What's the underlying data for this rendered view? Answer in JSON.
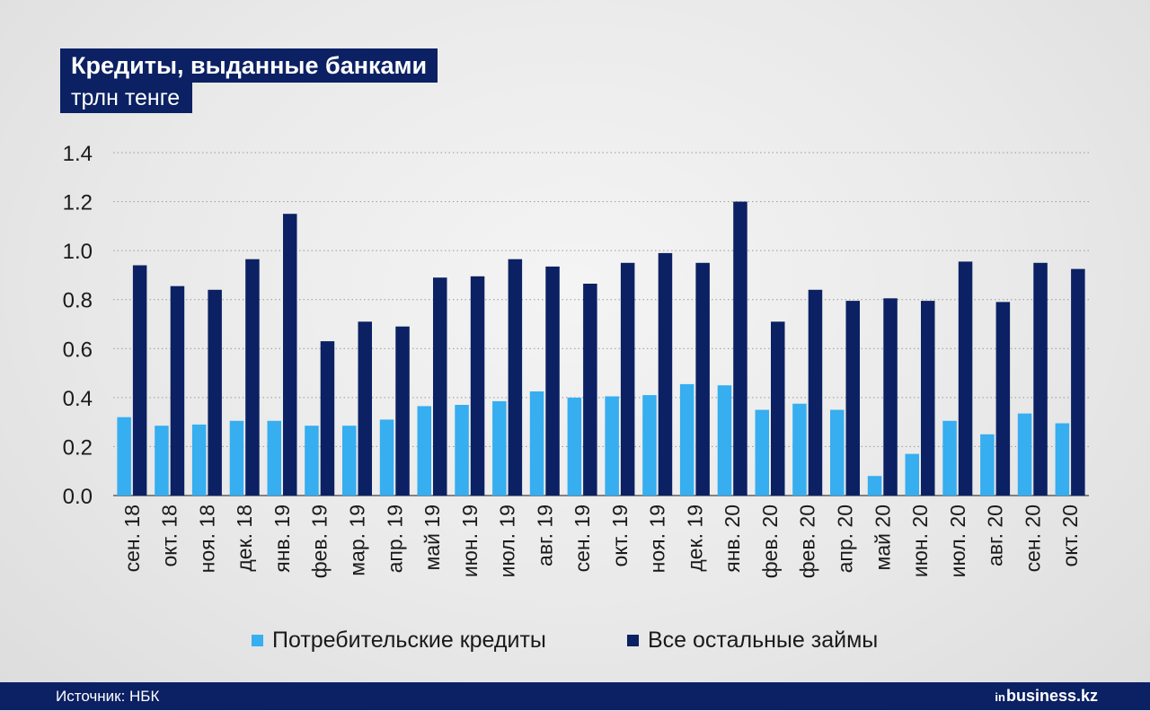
{
  "header": {
    "title": "Кредиты, выданные банками",
    "subtitle": "трлн тенге"
  },
  "footer": {
    "source": "Источник: НБК",
    "brand_prefix": "in",
    "brand_name": "business.kz"
  },
  "colors": {
    "consumer": "#36aef0",
    "other": "#0b2163",
    "grid": "#9a9a9a",
    "axis": "#444444"
  },
  "chart_data": {
    "type": "bar",
    "title": "Кредиты, выданные банками",
    "ylabel": "трлн тенге",
    "ylim": [
      0,
      1.4
    ],
    "yticks": [
      "0.0",
      "0.2",
      "0.4",
      "0.6",
      "0.8",
      "1.0",
      "1.2",
      "1.4"
    ],
    "grid": true,
    "legend_position": "bottom",
    "categories": [
      "сен. 18",
      "окт. 18",
      "ноя. 18",
      "дек. 18",
      "янв. 19",
      "фев. 19",
      "мар. 19",
      "апр. 19",
      "май 19",
      "июн. 19",
      "июл. 19",
      "авг. 19",
      "сен. 19",
      "окт. 19",
      "ноя. 19",
      "дек. 19",
      "янв. 20",
      "фев. 20",
      "фев. 20",
      "апр. 20",
      "май 20",
      "июн. 20",
      "июл. 20",
      "авг. 20",
      "сен. 20",
      "окт. 20"
    ],
    "series": [
      {
        "name": "Потребительские кредиты",
        "values": [
          0.32,
          0.285,
          0.29,
          0.305,
          0.305,
          0.285,
          0.285,
          0.31,
          0.365,
          0.37,
          0.385,
          0.425,
          0.4,
          0.405,
          0.41,
          0.455,
          0.45,
          0.35,
          0.375,
          0.35,
          0.08,
          0.17,
          0.305,
          0.25,
          0.335,
          0.295
        ]
      },
      {
        "name": "Все остальные займы",
        "values": [
          0.94,
          0.855,
          0.84,
          0.965,
          1.15,
          0.63,
          0.71,
          0.69,
          0.89,
          0.895,
          0.965,
          0.935,
          0.865,
          0.95,
          0.99,
          0.95,
          1.2,
          0.71,
          0.84,
          0.795,
          0.805,
          0.795,
          0.955,
          0.79,
          0.95,
          0.925
        ]
      }
    ]
  }
}
